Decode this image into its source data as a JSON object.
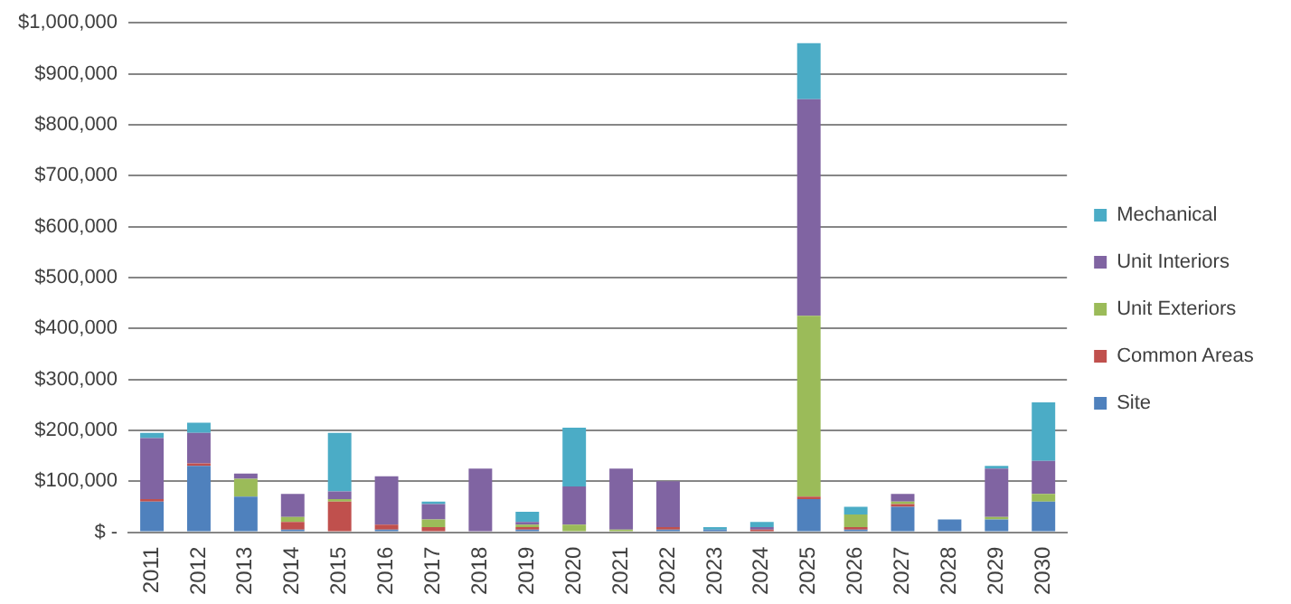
{
  "chart_data": {
    "type": "bar",
    "stacked": true,
    "categories": [
      "2011",
      "2012",
      "2013",
      "2014",
      "2015",
      "2016",
      "2017",
      "2018",
      "2019",
      "2020",
      "2021",
      "2022",
      "2023",
      "2024",
      "2025",
      "2026",
      "2027",
      "2028",
      "2029",
      "2030"
    ],
    "series": [
      {
        "name": "Site",
        "color": "#4f81bd",
        "values": [
          60000,
          130000,
          70000,
          5000,
          null,
          5000,
          null,
          null,
          5000,
          null,
          null,
          5000,
          5000,
          null,
          65000,
          5000,
          50000,
          25000,
          25000,
          60000
        ]
      },
      {
        "name": "Common Areas",
        "color": "#c0504d",
        "values": [
          5000,
          5000,
          null,
          15000,
          60000,
          10000,
          10000,
          null,
          5000,
          null,
          null,
          5000,
          null,
          5000,
          5000,
          5000,
          5000,
          null,
          null,
          null
        ]
      },
      {
        "name": "Unit Exteriors",
        "color": "#9bbb59",
        "values": [
          null,
          null,
          35000,
          10000,
          5000,
          null,
          15000,
          null,
          5000,
          15000,
          5000,
          null,
          null,
          null,
          355000,
          25000,
          5000,
          null,
          5000,
          15000
        ]
      },
      {
        "name": "Unit Interiors",
        "color": "#8064a2",
        "values": [
          120000,
          60000,
          10000,
          45000,
          15000,
          95000,
          30000,
          125000,
          5000,
          75000,
          120000,
          90000,
          null,
          5000,
          425000,
          null,
          15000,
          null,
          95000,
          65000
        ]
      },
      {
        "name": "Mechanical",
        "color": "#4bacc6",
        "values": [
          10000,
          20000,
          null,
          null,
          115000,
          null,
          5000,
          null,
          20000,
          115000,
          null,
          null,
          5000,
          10000,
          110000,
          15000,
          null,
          null,
          5000,
          115000
        ]
      }
    ],
    "ylim": [
      0,
      1000000
    ],
    "yticks": [
      {
        "value": 0,
        "label": "$ -"
      },
      {
        "value": 100000,
        "label": "$100,000"
      },
      {
        "value": 200000,
        "label": "$200,000"
      },
      {
        "value": 300000,
        "label": "$300,000"
      },
      {
        "value": 400000,
        "label": "$400,000"
      },
      {
        "value": 500000,
        "label": "$500,000"
      },
      {
        "value": 600000,
        "label": "$600,000"
      },
      {
        "value": 700000,
        "label": "$700,000"
      },
      {
        "value": 800000,
        "label": "$800,000"
      },
      {
        "value": 900000,
        "label": "$900,000"
      },
      {
        "value": 1000000,
        "label": "$1,000,000"
      }
    ],
    "grid": "y",
    "legend": "right"
  }
}
